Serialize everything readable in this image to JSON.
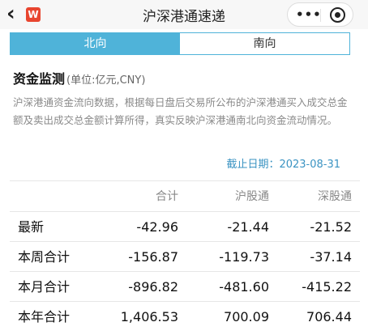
{
  "nav": {
    "title": "沪深港通速递",
    "logo_text": "W",
    "more_label": "•••"
  },
  "tabs": [
    {
      "label": "北向",
      "active": true
    },
    {
      "label": "南向",
      "active": false
    }
  ],
  "section": {
    "title": "资金监测",
    "unit": "(单位:亿元,CNY)",
    "description": "沪深港通资金流向数据，根据每日盘后交易所公布的沪深港通买入成交总金额及卖出成交总金额计算所得，真实反映沪深港通南北向资金流动情况。",
    "as_of_label": "截止日期：2023-08-31"
  },
  "table": {
    "headers": [
      "",
      "合计",
      "沪股通",
      "深股通"
    ],
    "rows": [
      {
        "label": "最新",
        "total": "-42.96",
        "sh": "-21.44",
        "sz": "-21.52"
      },
      {
        "label": "本周合计",
        "total": "-156.87",
        "sh": "-119.73",
        "sz": "-37.14"
      },
      {
        "label": "本月合计",
        "total": "-896.82",
        "sh": "-481.60",
        "sz": "-415.22"
      },
      {
        "label": "本年合计",
        "total": "1,406.53",
        "sh": "700.09",
        "sz": "706.44"
      }
    ]
  },
  "colors": {
    "accent": "#4fb3d9",
    "link": "#3a93c2",
    "logo": "#e8452f"
  },
  "icons": [
    "back-chevron-icon",
    "app-logo-icon",
    "more-icon",
    "close-target-icon"
  ]
}
